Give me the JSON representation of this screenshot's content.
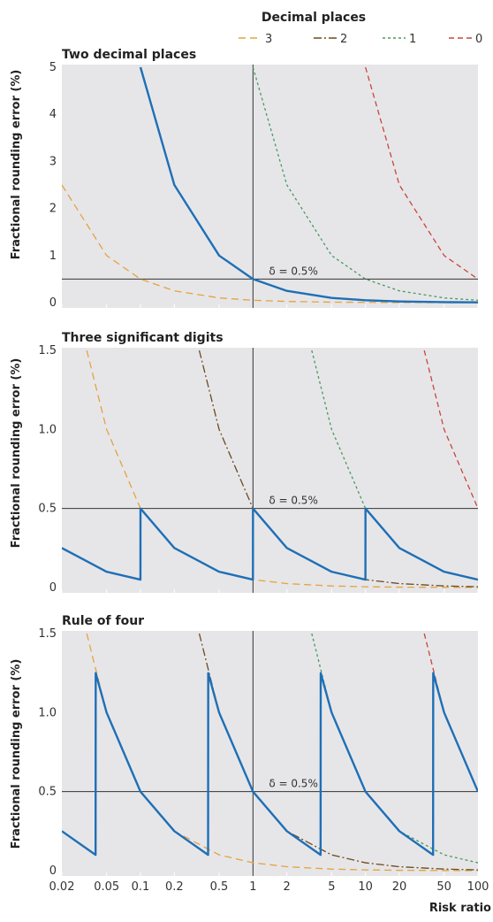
{
  "figure": {
    "legend_title": "Decimal places",
    "xlabel": "Risk ratio",
    "x_ticks": [
      {
        "value": 0.02,
        "label": "0.02"
      },
      {
        "value": 0.05,
        "label": "0.05"
      },
      {
        "value": 0.1,
        "label": "0.1"
      },
      {
        "value": 0.2,
        "label": "0.2"
      },
      {
        "value": 0.5,
        "label": "0.5"
      },
      {
        "value": 1,
        "label": "1"
      },
      {
        "value": 2,
        "label": "2"
      },
      {
        "value": 5,
        "label": "5"
      },
      {
        "value": 10,
        "label": "10"
      },
      {
        "value": 20,
        "label": "20"
      },
      {
        "value": 50,
        "label": "50"
      },
      {
        "value": 100,
        "label": "100"
      }
    ]
  },
  "legend": [
    {
      "label": "3",
      "color": "#e6a23c",
      "dash": "long-dash"
    },
    {
      "label": "2",
      "color": "#6b4a1e",
      "dash": "dash-dot"
    },
    {
      "label": "1",
      "color": "#4a9a5a",
      "dash": "short-dash"
    },
    {
      "label": "0",
      "color": "#c8463a",
      "dash": "dash"
    }
  ],
  "colors": {
    "panel_bg": "#e6e6e9",
    "rounding_curve": "#1f6fb5",
    "reference_lines": "#333333"
  },
  "chart_data": [
    {
      "type": "line",
      "title": "Two decimal places",
      "ylabel": "Fractional rounding error (%)",
      "x_scale": "log",
      "xlim": [
        0.02,
        100
      ],
      "ylim": [
        0,
        5
      ],
      "y_ticks": [
        {
          "value": 0,
          "label": "0"
        },
        {
          "value": 1,
          "label": "1"
        },
        {
          "value": 2,
          "label": "2"
        },
        {
          "value": 3,
          "label": "3"
        },
        {
          "value": 4,
          "label": "4"
        },
        {
          "value": 5,
          "label": "5"
        }
      ],
      "reference_x": 1,
      "reference_y": 0.5,
      "annotation": "δ = 0.5%",
      "series": [
        {
          "name": "3",
          "style": "decimal-bound",
          "points": [
            [
              0.02,
              2.5
            ],
            [
              0.05,
              1.0
            ],
            [
              0.1,
              0.5
            ],
            [
              0.2,
              0.25
            ],
            [
              0.5,
              0.1
            ],
            [
              1,
              0.05
            ],
            [
              2,
              0.025
            ],
            [
              5,
              0.01
            ],
            [
              10,
              0.005
            ],
            [
              20,
              0.0025
            ],
            [
              50,
              0.001
            ],
            [
              100,
              0.0005
            ]
          ]
        },
        {
          "name": "2",
          "style": "decimal-bound",
          "points": [
            [
              0.1,
              5.0
            ],
            [
              0.2,
              2.5
            ],
            [
              0.5,
              1.0
            ],
            [
              1,
              0.5
            ],
            [
              2,
              0.25
            ],
            [
              5,
              0.1
            ],
            [
              10,
              0.05
            ],
            [
              20,
              0.025
            ],
            [
              50,
              0.01
            ],
            [
              100,
              0.005
            ]
          ]
        },
        {
          "name": "1",
          "style": "decimal-bound",
          "points": [
            [
              1,
              5.0
            ],
            [
              2,
              2.5
            ],
            [
              5,
              1.0
            ],
            [
              10,
              0.5
            ],
            [
              20,
              0.25
            ],
            [
              50,
              0.1
            ],
            [
              100,
              0.05
            ]
          ]
        },
        {
          "name": "0",
          "style": "decimal-bound",
          "points": [
            [
              10,
              5.0
            ],
            [
              20,
              2.5
            ],
            [
              50,
              1.0
            ],
            [
              100,
              0.5
            ]
          ]
        },
        {
          "style": "rounding-error",
          "points": [
            [
              0.1,
              5.0
            ],
            [
              0.2,
              2.5
            ],
            [
              0.5,
              1.0
            ],
            [
              1,
              0.5
            ],
            [
              2,
              0.25
            ],
            [
              5,
              0.1
            ],
            [
              10,
              0.05
            ],
            [
              20,
              0.025
            ],
            [
              50,
              0.01
            ],
            [
              100,
              0.005
            ]
          ]
        }
      ]
    },
    {
      "type": "line",
      "title": "Three significant digits",
      "ylabel": "Fractional rounding error (%)",
      "x_scale": "log",
      "xlim": [
        0.02,
        100
      ],
      "ylim": [
        0,
        1.5
      ],
      "y_ticks": [
        {
          "value": 0,
          "label": "0"
        },
        {
          "value": 0.5,
          "label": "0.5"
        },
        {
          "value": 1.0,
          "label": "1.0"
        },
        {
          "value": 1.5,
          "label": "1.5"
        }
      ],
      "reference_x": 1,
      "reference_y": 0.5,
      "annotation": "δ = 0.5%",
      "series": [
        {
          "name": "3",
          "style": "decimal-bound",
          "points": [
            [
              0.0333,
              1.5
            ],
            [
              0.05,
              1.0
            ],
            [
              0.1,
              0.5
            ],
            [
              0.2,
              0.25
            ],
            [
              0.5,
              0.1
            ],
            [
              1,
              0.05
            ],
            [
              2,
              0.025
            ],
            [
              5,
              0.01
            ],
            [
              10,
              0.005
            ],
            [
              20,
              0.0025
            ],
            [
              50,
              0.001
            ],
            [
              100,
              0.0005
            ]
          ]
        },
        {
          "name": "2",
          "style": "decimal-bound",
          "points": [
            [
              0.333,
              1.5
            ],
            [
              0.5,
              1.0
            ],
            [
              1,
              0.5
            ],
            [
              2,
              0.25
            ],
            [
              5,
              0.1
            ],
            [
              10,
              0.05
            ],
            [
              20,
              0.025
            ],
            [
              50,
              0.01
            ],
            [
              100,
              0.005
            ]
          ]
        },
        {
          "name": "1",
          "style": "decimal-bound",
          "points": [
            [
              3.33,
              1.5
            ],
            [
              5,
              1.0
            ],
            [
              10,
              0.5
            ],
            [
              20,
              0.25
            ],
            [
              50,
              0.1
            ],
            [
              100,
              0.05
            ]
          ]
        },
        {
          "name": "0",
          "style": "decimal-bound",
          "points": [
            [
              33.3,
              1.5
            ],
            [
              50,
              1.0
            ],
            [
              100,
              0.5
            ]
          ]
        },
        {
          "style": "rounding-error",
          "points": [
            [
              0.02,
              0.25
            ],
            [
              0.05,
              0.1
            ],
            [
              0.0999,
              0.05
            ],
            [
              0.1,
              0.5
            ],
            [
              0.2,
              0.25
            ],
            [
              0.5,
              0.1
            ],
            [
              0.999,
              0.05
            ],
            [
              1,
              0.5
            ],
            [
              2,
              0.25
            ],
            [
              5,
              0.1
            ],
            [
              9.99,
              0.05
            ],
            [
              10,
              0.5
            ],
            [
              20,
              0.25
            ],
            [
              50,
              0.1
            ],
            [
              100,
              0.05
            ]
          ]
        }
      ]
    },
    {
      "type": "line",
      "title": "Rule of four",
      "ylabel": "Fractional rounding error (%)",
      "x_scale": "log",
      "xlim": [
        0.02,
        100
      ],
      "ylim": [
        0,
        1.5
      ],
      "y_ticks": [
        {
          "value": 0,
          "label": "0"
        },
        {
          "value": 0.5,
          "label": "0.5"
        },
        {
          "value": 1.0,
          "label": "1.0"
        },
        {
          "value": 1.5,
          "label": "1.5"
        }
      ],
      "reference_x": 1,
      "reference_y": 0.5,
      "annotation": "δ = 0.5%",
      "series": [
        {
          "name": "3",
          "style": "decimal-bound",
          "points": [
            [
              0.0333,
              1.5
            ],
            [
              0.05,
              1.0
            ],
            [
              0.1,
              0.5
            ],
            [
              0.2,
              0.25
            ],
            [
              0.5,
              0.1
            ],
            [
              1,
              0.05
            ],
            [
              2,
              0.025
            ],
            [
              5,
              0.01
            ],
            [
              10,
              0.005
            ],
            [
              20,
              0.0025
            ],
            [
              50,
              0.001
            ],
            [
              100,
              0.0005
            ]
          ]
        },
        {
          "name": "2",
          "style": "decimal-bound",
          "points": [
            [
              0.333,
              1.5
            ],
            [
              0.5,
              1.0
            ],
            [
              1,
              0.5
            ],
            [
              2,
              0.25
            ],
            [
              5,
              0.1
            ],
            [
              10,
              0.05
            ],
            [
              20,
              0.025
            ],
            [
              50,
              0.01
            ],
            [
              100,
              0.005
            ]
          ]
        },
        {
          "name": "1",
          "style": "decimal-bound",
          "points": [
            [
              3.33,
              1.5
            ],
            [
              5,
              1.0
            ],
            [
              10,
              0.5
            ],
            [
              20,
              0.25
            ],
            [
              50,
              0.1
            ],
            [
              100,
              0.05
            ]
          ]
        },
        {
          "name": "0",
          "style": "decimal-bound",
          "points": [
            [
              33.3,
              1.5
            ],
            [
              50,
              1.0
            ],
            [
              100,
              0.5
            ]
          ]
        },
        {
          "style": "rounding-error",
          "points": [
            [
              0.02,
              0.25
            ],
            [
              0.0399,
              0.1
            ],
            [
              0.04,
              1.25
            ],
            [
              0.05,
              1.0
            ],
            [
              0.1,
              0.5
            ],
            [
              0.2,
              0.25
            ],
            [
              0.399,
              0.1
            ],
            [
              0.4,
              1.25
            ],
            [
              0.5,
              1.0
            ],
            [
              1,
              0.5
            ],
            [
              2,
              0.25
            ],
            [
              3.99,
              0.1
            ],
            [
              4,
              1.25
            ],
            [
              5,
              1.0
            ],
            [
              10,
              0.5
            ],
            [
              20,
              0.25
            ],
            [
              39.9,
              0.1
            ],
            [
              40,
              1.25
            ],
            [
              50,
              1.0
            ],
            [
              100,
              0.5
            ]
          ]
        }
      ]
    }
  ]
}
